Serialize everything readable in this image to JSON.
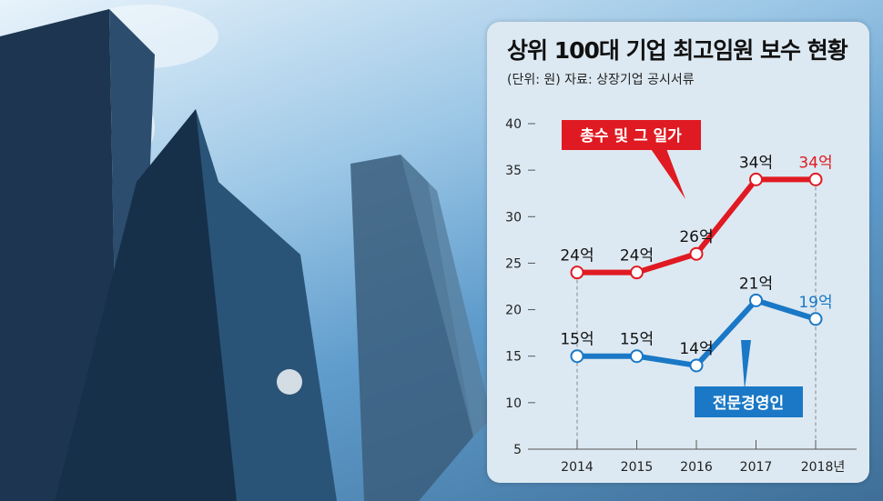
{
  "chart_data": {
    "type": "line",
    "title": "상위 100대 기업 최고임원 보수 현황",
    "subtitle": "(단위: 원) 자료: 상장기업 공시서류",
    "categories": [
      "2014",
      "2015",
      "2016",
      "2017",
      "2018년"
    ],
    "ylim": [
      5,
      40
    ],
    "yticks": [
      "5",
      "10",
      "15",
      "20",
      "25",
      "30",
      "35",
      "40"
    ],
    "series": [
      {
        "name": "총수 및 그 일가",
        "color": "#e01a22",
        "values": [
          24,
          24,
          26,
          34,
          34
        ],
        "labels": [
          "24억",
          "24억",
          "26억",
          "34억",
          "34억"
        ]
      },
      {
        "name": "전문경영인",
        "color": "#1a78c6",
        "values": [
          15,
          15,
          14,
          21,
          19
        ],
        "labels": [
          "15억",
          "15억",
          "14억",
          "21억",
          "19억"
        ]
      }
    ]
  }
}
